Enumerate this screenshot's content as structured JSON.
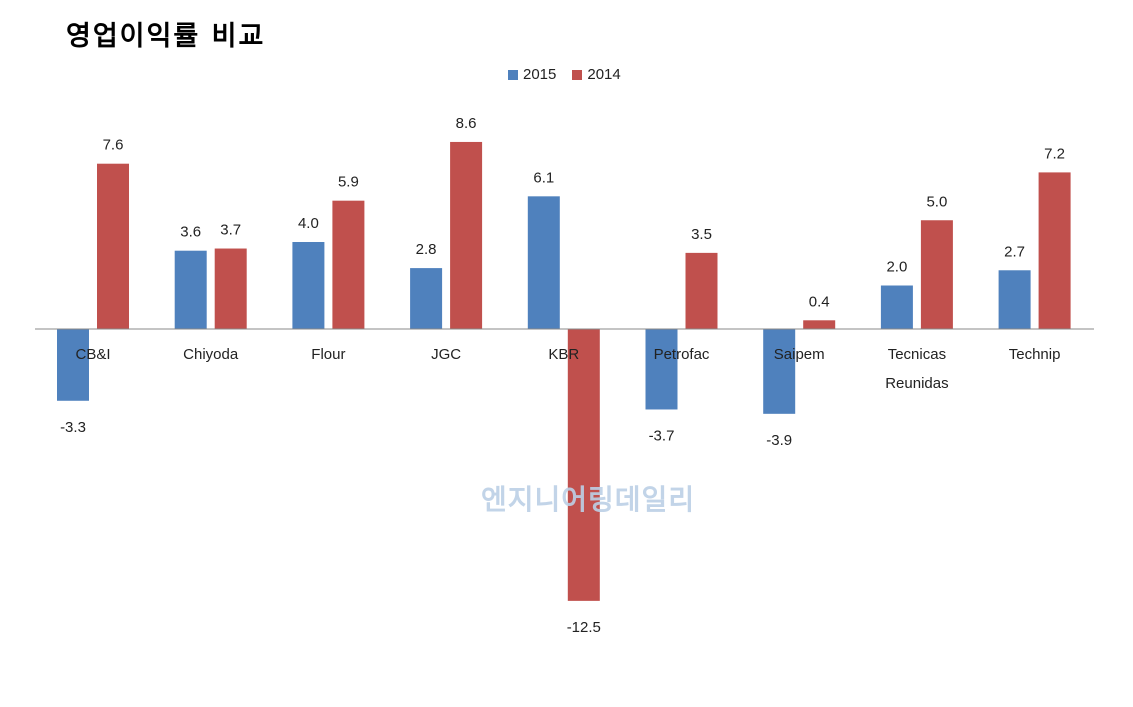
{
  "chart_data": {
    "type": "bar",
    "title": "영업이익률 비교",
    "categories": [
      "CB&I",
      "Chiyoda",
      "Flour",
      "JGC",
      "KBR",
      "Petrofac",
      "Saipem",
      "Tecnicas Reunidas",
      "Technip"
    ],
    "series": [
      {
        "name": "2015",
        "color": "#4f81bd",
        "values": [
          -3.3,
          3.6,
          4.0,
          2.8,
          6.1,
          -3.7,
          -3.9,
          2.0,
          2.7
        ]
      },
      {
        "name": "2014",
        "color": "#c0504d",
        "values": [
          7.6,
          3.7,
          5.9,
          8.6,
          -12.5,
          3.5,
          0.4,
          5.0,
          7.2
        ]
      }
    ],
    "data_labels": [
      [
        "-3.3",
        "3.6",
        "4.0",
        "2.8",
        "6.1",
        "-3.7",
        "-3.9",
        "2.0",
        "2.7"
      ],
      [
        "7.6",
        "3.7",
        "5.9",
        "8.6",
        "-12.5",
        "3.5",
        "0.4",
        "5.0",
        "7.2"
      ]
    ],
    "legend_position": "top-center",
    "grid": false,
    "watermark": "엔지니어링데일리"
  }
}
